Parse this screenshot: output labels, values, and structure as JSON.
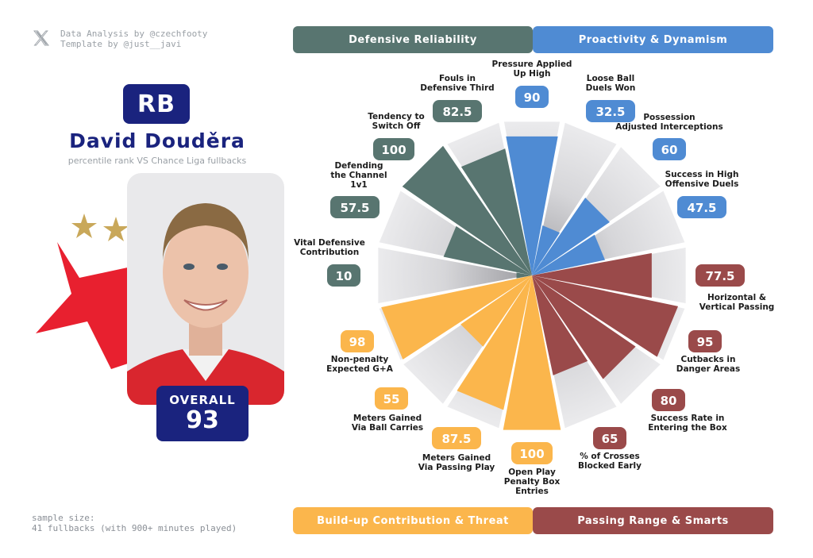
{
  "credits": {
    "line1": "Data Analysis by @czechfooty",
    "line2": "Template by @just__javi"
  },
  "player": {
    "position": "RB",
    "name": "David Douděra",
    "subtitle": "percentile rank VS Chance Liga fullbacks",
    "overall_label": "OVERALL",
    "overall_value": "93"
  },
  "sample": {
    "line1": "sample size:",
    "line2": "41 fullbacks (with 900+ minutes played)"
  },
  "colors": {
    "defensive": "#587570",
    "proactivity": "#4f8bd3",
    "passing": "#9a4a4a",
    "buildup": "#fbb64c",
    "background_wedge": "#e6e6e8",
    "navy": "#1a237e"
  },
  "categories": {
    "defensive": "Defensive Reliability",
    "proactivity": "Proactivity & Dynamism",
    "buildup": "Build-up Contribution & Threat",
    "passing": "Passing Range & Smarts"
  },
  "chart_data": {
    "type": "polar-bar",
    "range": [
      0,
      100
    ],
    "series": [
      {
        "label": [
          "Pressure Applied",
          "Up High"
        ],
        "value": 90,
        "group": "proactivity"
      },
      {
        "label": [
          "Loose Ball",
          "Duels Won"
        ],
        "value": 32.5,
        "group": "proactivity"
      },
      {
        "label": [
          "Possession",
          "Adjusted Interceptions"
        ],
        "value": 60,
        "group": "proactivity"
      },
      {
        "label": [
          "Success in High",
          "Offensive Duels"
        ],
        "value": 47.5,
        "group": "proactivity"
      },
      {
        "label": [
          "Horizontal &",
          "Vertical Passing"
        ],
        "value": 77.5,
        "group": "passing"
      },
      {
        "label": [
          "Cutbacks in",
          "Danger Areas"
        ],
        "value": 95,
        "group": "passing"
      },
      {
        "label": [
          "Success Rate in",
          "Entering the Box"
        ],
        "value": 80,
        "group": "passing"
      },
      {
        "label": [
          "% of Crosses",
          "Blocked Early"
        ],
        "value": 65,
        "group": "passing"
      },
      {
        "label": [
          "Open Play",
          "Penalty Box",
          "Entries"
        ],
        "value": 100,
        "group": "buildup"
      },
      {
        "label": [
          "Meters Gained",
          "Via Passing Play"
        ],
        "value": 87.5,
        "group": "buildup"
      },
      {
        "label": [
          "Meters Gained",
          "Via Ball Carries"
        ],
        "value": 55,
        "group": "buildup"
      },
      {
        "label": [
          "Non-penalty",
          "Expected G+A"
        ],
        "value": 98,
        "group": "buildup"
      },
      {
        "label": [
          "Vital Defensive",
          "Contribution"
        ],
        "value": 10,
        "group": "defensive"
      },
      {
        "label": [
          "Defending",
          "the Channel",
          "1v1"
        ],
        "value": 57.5,
        "group": "defensive"
      },
      {
        "label": [
          "Tendency to",
          "Switch Off"
        ],
        "value": 100,
        "group": "defensive"
      },
      {
        "label": [
          "Fouls in",
          "Defensive Third"
        ],
        "value": 82.5,
        "group": "defensive"
      }
    ]
  }
}
